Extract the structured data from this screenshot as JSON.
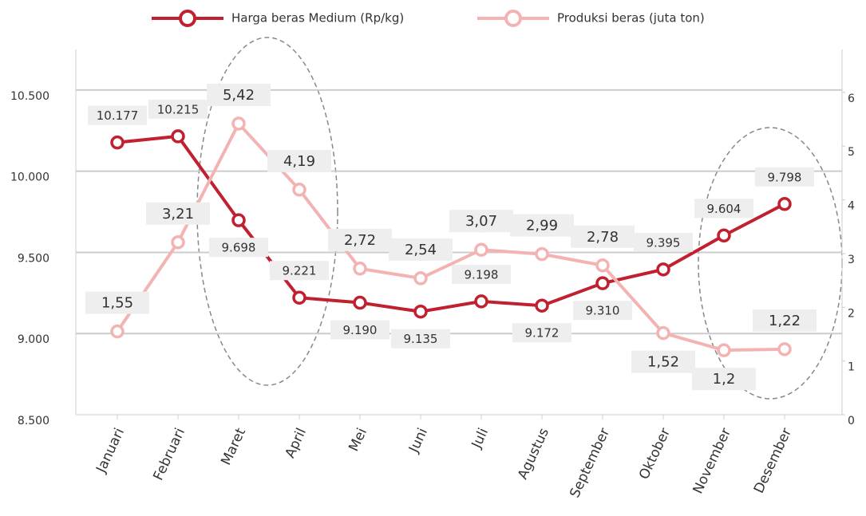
{
  "chart_data": {
    "type": "line",
    "categories": [
      "Januari",
      "Februari",
      "Maret",
      "April",
      "Mei",
      "Juni",
      "Juli",
      "Agustus",
      "September",
      "Oktober",
      "November",
      "Desember"
    ],
    "series": [
      {
        "name": "Harga beras Medium (Rp/kg)",
        "color": "#c0202f",
        "values": [
          10177,
          10215,
          9698,
          9221,
          9190,
          9135,
          9198,
          9172,
          9310,
          9395,
          9604,
          9798
        ],
        "value_labels": [
          "10.177",
          "10.215",
          "9.698",
          "9.221",
          "9.190",
          "9.135",
          "9.198",
          "9.172",
          "9.310",
          "9.395",
          "9.604",
          "9.798"
        ]
      },
      {
        "name": "Produksi beras (juta ton)",
        "color": "#f4b3b3",
        "axis": "y2",
        "values": [
          1.55,
          3.21,
          5.42,
          4.19,
          2.72,
          2.54,
          3.07,
          2.99,
          2.78,
          1.52,
          1.2,
          1.22
        ],
        "value_labels": [
          "1,55",
          "3,21",
          "5,42",
          "4,19",
          "2,72",
          "2,54",
          "3,07",
          "2,99",
          "2,78",
          "1,52",
          "1,2",
          "1,22"
        ]
      }
    ],
    "ylim": [
      8500,
      10750
    ],
    "yticks": [
      {
        "value": 8500,
        "label": "8.500"
      },
      {
        "value": 9000,
        "label": "9.000"
      },
      {
        "value": 9500,
        "label": "9.500"
      },
      {
        "value": 10000,
        "label": "10.000"
      },
      {
        "value": 10500,
        "label": "10.500"
      }
    ],
    "y2lim": [
      0,
      6.8
    ],
    "y2ticks": [
      0,
      1,
      2,
      3,
      4,
      5,
      6
    ],
    "grid": true,
    "legend": "top"
  }
}
